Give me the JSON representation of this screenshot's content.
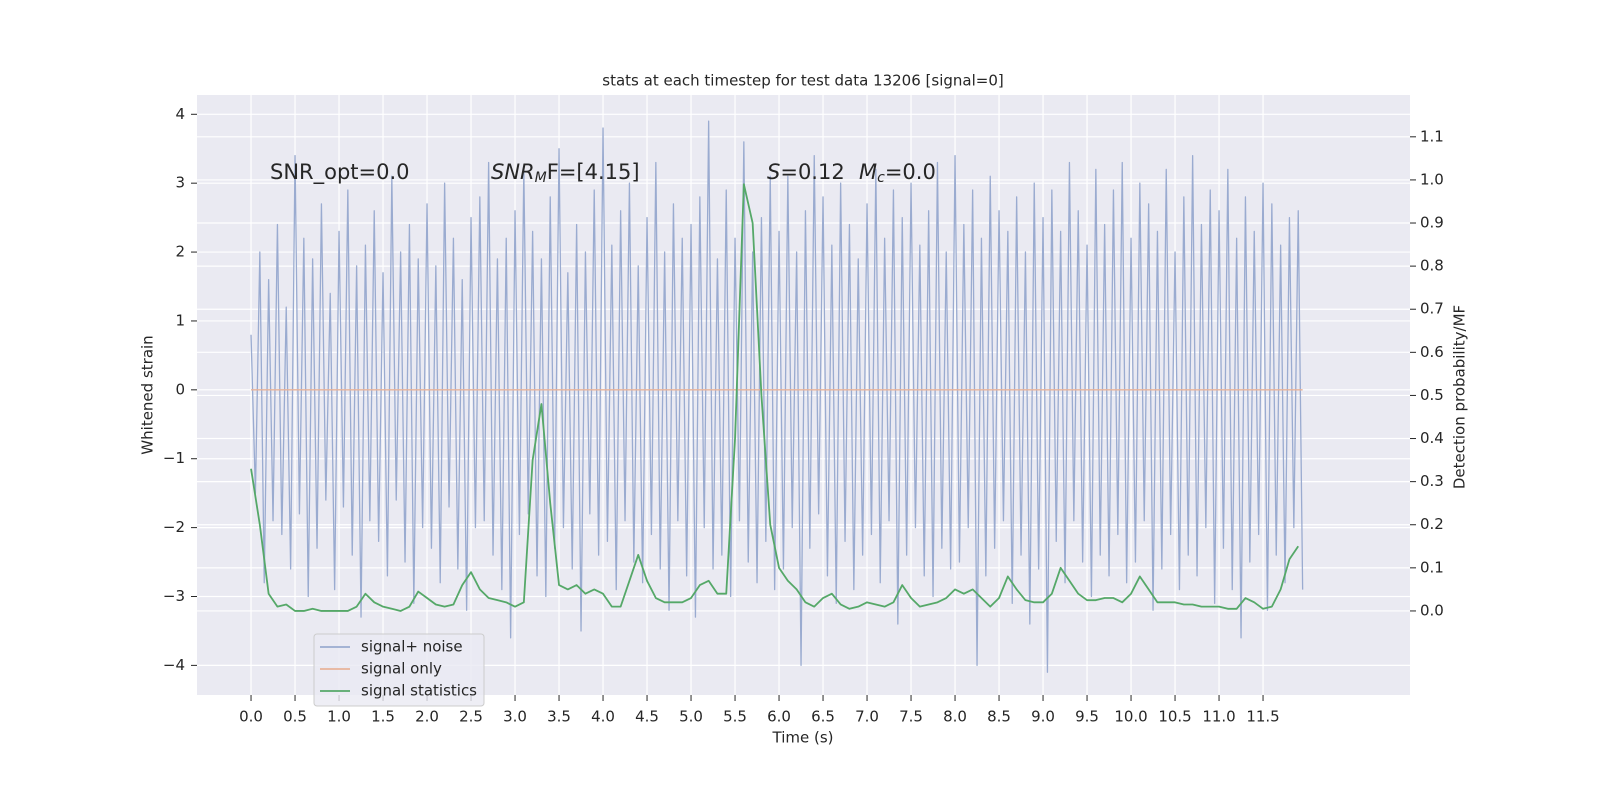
{
  "chart_data": {
    "type": "line",
    "title": "stats at each timestep for test data 13206 [signal=0]",
    "xlabel": "Time (s)",
    "ylabel": "Whitened strain",
    "y2label": "Detection probability/MF",
    "annotations": [
      {
        "text": "SNR_opt=0.0"
      },
      {
        "text": "SNR",
        "sub": "M",
        "rest": "F=[4.15]"
      },
      {
        "text": "S",
        "rest": "=0.12"
      },
      {
        "text": "M",
        "sub": "c",
        "rest": "=0.0"
      }
    ],
    "xlim": [
      -0.614,
      13.17
    ],
    "ylim": [
      -4.43,
      4.28
    ],
    "y2lim": [
      -0.195,
      1.197
    ],
    "xticks": [
      {
        "value": 0,
        "label": "0.0"
      },
      0.5,
      {
        "value": 1,
        "label": "1.0"
      },
      1.5,
      {
        "value": 2,
        "label": "2.0"
      },
      2.5,
      {
        "value": 3,
        "label": "3.0"
      },
      3.5,
      {
        "value": 4,
        "label": "4.0"
      },
      4.5,
      {
        "value": 5,
        "label": "5.0"
      },
      5.5,
      {
        "value": 6,
        "label": "6.0"
      },
      6.5,
      {
        "value": 7,
        "label": "7.0"
      },
      7.5,
      {
        "value": 8,
        "label": "8.0"
      },
      8.5,
      {
        "value": 9,
        "label": "9.0"
      },
      9.5,
      {
        "value": 10,
        "label": "10.0"
      },
      10.5,
      {
        "value": 11,
        "label": "11.0"
      },
      11.5
    ],
    "yticks": [
      {
        "value": -4,
        "label": "−4"
      },
      {
        "value": -3,
        "label": "−3"
      },
      {
        "value": -2,
        "label": "−2"
      },
      {
        "value": -1,
        "label": "−1"
      },
      0,
      1,
      2,
      3,
      4
    ],
    "y2ticks": [
      {
        "value": 0,
        "label": "0.0"
      },
      0.1,
      0.2,
      0.3,
      0.4,
      0.5,
      0.6,
      0.7,
      0.8,
      0.9,
      {
        "value": 1,
        "label": "1.0"
      },
      1.1
    ],
    "grid": true,
    "legend": "lower left",
    "series": [
      {
        "name": "signal+ noise",
        "color": "#9aabd0",
        "x": [
          0,
          0.05,
          0.1,
          0.15,
          0.2,
          0.25,
          0.3,
          0.35,
          0.4,
          0.45,
          0.5,
          0.55,
          0.6,
          0.65,
          0.7,
          0.75,
          0.8,
          0.85,
          0.9,
          0.95,
          1,
          1.05,
          1.1,
          1.15,
          1.2,
          1.25,
          1.3,
          1.35,
          1.4,
          1.45,
          1.5,
          1.55,
          1.6,
          1.65,
          1.7,
          1.75,
          1.8,
          1.85,
          1.9,
          1.95,
          2,
          2.05,
          2.1,
          2.15,
          2.2,
          2.25,
          2.3,
          2.35,
          2.4,
          2.45,
          2.5,
          2.55,
          2.6,
          2.65,
          2.7,
          2.75,
          2.8,
          2.85,
          2.9,
          2.95,
          3,
          3.05,
          3.1,
          3.15,
          3.2,
          3.25,
          3.3,
          3.35,
          3.4,
          3.45,
          3.5,
          3.55,
          3.6,
          3.65,
          3.7,
          3.75,
          3.8,
          3.85,
          3.9,
          3.95,
          4,
          4.05,
          4.1,
          4.15,
          4.2,
          4.25,
          4.3,
          4.35,
          4.4,
          4.45,
          4.5,
          4.55,
          4.6,
          4.65,
          4.7,
          4.75,
          4.8,
          4.85,
          4.9,
          4.95,
          5,
          5.05,
          5.1,
          5.15,
          5.2,
          5.25,
          5.3,
          5.35,
          5.4,
          5.45,
          5.5,
          5.55,
          5.6,
          5.65,
          5.7,
          5.75,
          5.8,
          5.85,
          5.9,
          5.95,
          6,
          6.05,
          6.1,
          6.15,
          6.2,
          6.25,
          6.3,
          6.35,
          6.4,
          6.45,
          6.5,
          6.55,
          6.6,
          6.65,
          6.7,
          6.75,
          6.8,
          6.85,
          6.9,
          6.95,
          7,
          7.05,
          7.1,
          7.15,
          7.2,
          7.25,
          7.3,
          7.35,
          7.4,
          7.45,
          7.5,
          7.55,
          7.6,
          7.65,
          7.7,
          7.75,
          7.8,
          7.85,
          7.9,
          7.95,
          8,
          8.05,
          8.1,
          8.15,
          8.2,
          8.25,
          8.3,
          8.35,
          8.4,
          8.45,
          8.5,
          8.55,
          8.6,
          8.65,
          8.7,
          8.75,
          8.8,
          8.85,
          8.9,
          8.95,
          9,
          9.05,
          9.1,
          9.15,
          9.2,
          9.25,
          9.3,
          9.35,
          9.4,
          9.45,
          9.5,
          9.55,
          9.6,
          9.65,
          9.7,
          9.75,
          9.8,
          9.85,
          9.9,
          9.95,
          10,
          10.05,
          10.1,
          10.15,
          10.2,
          10.25,
          10.3,
          10.35,
          10.4,
          10.45,
          10.5,
          10.55,
          10.6,
          10.65,
          10.7,
          10.75,
          10.8,
          10.85,
          10.9,
          10.95,
          11,
          11.05,
          11.1,
          11.15,
          11.2,
          11.25,
          11.3,
          11.35,
          11.4,
          11.45,
          11.5,
          11.55,
          11.6,
          11.65,
          11.7,
          11.75,
          11.8,
          11.85,
          11.9,
          11.95
        ],
        "values": [
          0.8,
          -1.5,
          2.0,
          -2.8,
          1.6,
          -1.9,
          2.4,
          -2.1,
          1.2,
          -2.6,
          3.4,
          -1.8,
          2.2,
          -3.0,
          1.9,
          -2.3,
          2.7,
          -1.6,
          1.4,
          -2.9,
          2.3,
          -1.7,
          2.9,
          -2.4,
          1.8,
          -3.3,
          2.1,
          -1.9,
          2.6,
          -2.2,
          1.7,
          -2.7,
          3.1,
          -1.6,
          2.0,
          -2.5,
          2.4,
          -3.1,
          1.9,
          -2.0,
          2.7,
          -2.3,
          1.8,
          -2.8,
          3.0,
          -1.7,
          2.2,
          -2.6,
          1.6,
          -3.2,
          2.5,
          -2.0,
          2.8,
          -1.9,
          3.3,
          -2.4,
          1.9,
          -2.9,
          2.2,
          -3.6,
          2.6,
          -2.1,
          3.2,
          -1.8,
          2.3,
          -2.7,
          1.9,
          -3.0,
          2.8,
          -2.3,
          3.5,
          -2.0,
          1.7,
          -2.6,
          2.4,
          -3.5,
          2.0,
          -1.8,
          2.9,
          -2.4,
          3.8,
          -2.2,
          2.1,
          -2.9,
          2.6,
          -1.9,
          3.0,
          -2.5,
          1.8,
          -2.8,
          2.5,
          -2.1,
          3.3,
          -2.6,
          2.0,
          -3.2,
          2.7,
          -1.9,
          2.2,
          -2.7,
          2.4,
          -3.3,
          2.8,
          -2.0,
          3.9,
          -2.6,
          1.9,
          -2.4,
          2.9,
          -3.0,
          2.2,
          -1.9,
          3.6,
          -2.5,
          2.0,
          -2.8,
          2.5,
          -2.2,
          3.1,
          -2.9,
          2.3,
          -2.6,
          3.1,
          -2.0,
          2.0,
          -4.0,
          2.6,
          -2.3,
          3.4,
          -1.8,
          2.8,
          -2.7,
          2.1,
          -3.1,
          3.0,
          -2.2,
          2.4,
          -2.9,
          1.9,
          -2.4,
          2.7,
          -2.1,
          3.2,
          -2.8,
          2.2,
          -1.9,
          2.9,
          -3.4,
          2.5,
          -2.4,
          3.0,
          -2.0,
          2.1,
          -2.7,
          2.6,
          -3.0,
          3.3,
          -2.3,
          2.0,
          -2.6,
          3.4,
          -2.5,
          2.4,
          -2.0,
          2.9,
          -4.0,
          2.2,
          -2.7,
          3.1,
          -2.3,
          2.6,
          -1.9,
          2.3,
          -3.1,
          2.8,
          -2.4,
          2.0,
          -3.4,
          3.0,
          -2.6,
          2.5,
          -4.1,
          2.9,
          -2.2,
          2.3,
          -2.8,
          3.3,
          -1.9,
          2.6,
          -2.5,
          2.1,
          -3.0,
          3.2,
          -2.4,
          2.4,
          -2.7,
          2.9,
          -2.1,
          3.3,
          -2.8,
          2.2,
          -2.5,
          3.0,
          -1.9,
          2.7,
          -3.2,
          2.3,
          -2.6,
          3.2,
          -2.1,
          2.0,
          -2.9,
          2.8,
          -2.4,
          3.4,
          -2.7,
          2.4,
          -2.0,
          2.9,
          -3.1,
          2.6,
          -2.3,
          3.2,
          -2.9,
          2.2,
          -3.6,
          2.8,
          -2.5,
          2.3,
          -2.1,
          3.0,
          -3.2,
          2.7,
          -2.4,
          2.1,
          -2.8,
          2.5,
          -2.0,
          2.6,
          -2.9
        ]
      },
      {
        "name": "signal only",
        "color": "#e8b39a",
        "x": [
          0,
          11.95
        ],
        "values": [
          0,
          0
        ]
      },
      {
        "name": "signal statistics",
        "color": "#55a868",
        "axis": "y2",
        "x": [
          0,
          0.1,
          0.2,
          0.3,
          0.4,
          0.5,
          0.6,
          0.7,
          0.8,
          0.9,
          1,
          1.1,
          1.2,
          1.3,
          1.4,
          1.5,
          1.6,
          1.7,
          1.8,
          1.9,
          2,
          2.1,
          2.2,
          2.3,
          2.4,
          2.5,
          2.6,
          2.7,
          2.8,
          2.9,
          3,
          3.1,
          3.2,
          3.3,
          3.4,
          3.5,
          3.6,
          3.7,
          3.8,
          3.9,
          4,
          4.1,
          4.2,
          4.3,
          4.4,
          4.5,
          4.6,
          4.7,
          4.8,
          4.9,
          5,
          5.1,
          5.2,
          5.3,
          5.4,
          5.5,
          5.6,
          5.7,
          5.8,
          5.9,
          6,
          6.1,
          6.2,
          6.3,
          6.4,
          6.5,
          6.6,
          6.7,
          6.8,
          6.9,
          7,
          7.1,
          7.2,
          7.3,
          7.4,
          7.5,
          7.6,
          7.7,
          7.8,
          7.9,
          8,
          8.1,
          8.2,
          8.3,
          8.4,
          8.5,
          8.6,
          8.7,
          8.8,
          8.9,
          9,
          9.1,
          9.2,
          9.3,
          9.4,
          9.5,
          9.6,
          9.7,
          9.8,
          9.9,
          10,
          10.1,
          10.2,
          10.3,
          10.4,
          10.5,
          10.6,
          10.7,
          10.8,
          10.9,
          11,
          11.1,
          11.2,
          11.3,
          11.4,
          11.5,
          11.6,
          11.7,
          11.8,
          11.9
        ],
        "values": [
          0.33,
          0.2,
          0.04,
          0.01,
          0.015,
          0.0,
          0.0,
          0.005,
          0.0,
          0.0,
          0.0,
          0.0,
          0.01,
          0.04,
          0.02,
          0.01,
          0.005,
          0.0,
          0.01,
          0.045,
          0.03,
          0.015,
          0.01,
          0.015,
          0.06,
          0.09,
          0.05,
          0.03,
          0.025,
          0.02,
          0.01,
          0.02,
          0.35,
          0.48,
          0.25,
          0.06,
          0.05,
          0.06,
          0.04,
          0.05,
          0.04,
          0.01,
          0.01,
          0.07,
          0.13,
          0.07,
          0.03,
          0.02,
          0.02,
          0.02,
          0.03,
          0.06,
          0.07,
          0.04,
          0.04,
          0.4,
          0.99,
          0.9,
          0.5,
          0.2,
          0.1,
          0.07,
          0.05,
          0.02,
          0.01,
          0.03,
          0.04,
          0.015,
          0.005,
          0.01,
          0.02,
          0.015,
          0.01,
          0.02,
          0.06,
          0.03,
          0.01,
          0.015,
          0.02,
          0.03,
          0.05,
          0.04,
          0.05,
          0.03,
          0.01,
          0.03,
          0.08,
          0.05,
          0.025,
          0.02,
          0.02,
          0.04,
          0.1,
          0.07,
          0.04,
          0.025,
          0.025,
          0.03,
          0.03,
          0.02,
          0.04,
          0.08,
          0.05,
          0.02,
          0.02,
          0.02,
          0.015,
          0.015,
          0.01,
          0.01,
          0.01,
          0.005,
          0.005,
          0.03,
          0.02,
          0.005,
          0.01,
          0.05,
          0.12,
          0.15
        ]
      }
    ]
  }
}
